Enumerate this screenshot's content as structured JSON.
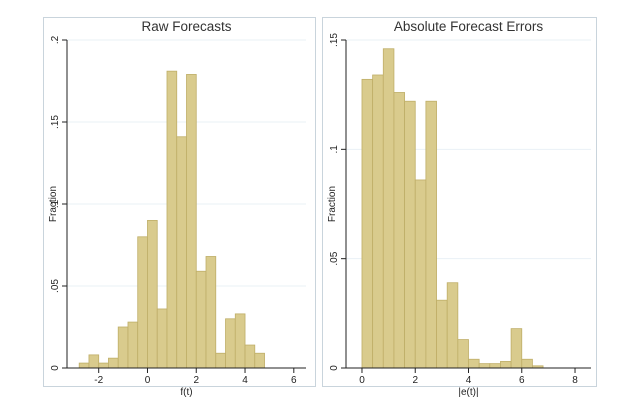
{
  "chart_data": [
    {
      "type": "bar",
      "title": "Raw Forecasts",
      "xlabel": "f(t)",
      "ylabel": "Fraction",
      "xlim": [
        -3.3,
        6.5
      ],
      "ylim": [
        0,
        0.2
      ],
      "xticks": [
        -2,
        0,
        2,
        4,
        6
      ],
      "xtick_labels": [
        "-2",
        "0",
        "2",
        "4",
        "6"
      ],
      "yticks": [
        0,
        0.05,
        0.1,
        0.15,
        0.2
      ],
      "ytick_labels": [
        "0",
        ".05",
        ".1",
        ".15",
        ".2"
      ],
      "bin_width": 0.4,
      "bin_starts": [
        -2.8,
        -2.4,
        -2.0,
        -1.6,
        -1.2,
        -0.8,
        -0.4,
        0.0,
        0.4,
        0.8,
        1.2,
        1.6,
        2.0,
        2.4,
        2.8,
        3.2,
        3.6,
        4.0,
        4.4,
        4.8
      ],
      "values": [
        0.003,
        0.008,
        0.003,
        0.006,
        0.025,
        0.028,
        0.08,
        0.09,
        0.036,
        0.181,
        0.141,
        0.179,
        0.059,
        0.068,
        0.009,
        0.03,
        0.033,
        0.014,
        0.009,
        0.0
      ],
      "grid": true
    },
    {
      "type": "bar",
      "title": "Absolute Forecast Errors",
      "xlabel": "|e(t)|",
      "ylabel": "Fraction",
      "xlim": [
        -0.6,
        8.6
      ],
      "ylim": [
        0,
        0.15
      ],
      "xticks": [
        0,
        2,
        4,
        6,
        8
      ],
      "xtick_labels": [
        "0",
        "2",
        "4",
        "6",
        "8"
      ],
      "yticks": [
        0,
        0.05,
        0.1,
        0.15
      ],
      "ytick_labels": [
        "0",
        ".05",
        ".1",
        ".15"
      ],
      "bin_width": 0.4,
      "bin_starts": [
        0.0,
        0.4,
        0.8,
        1.2,
        1.6,
        2.0,
        2.4,
        2.8,
        3.2,
        3.6,
        4.0,
        4.4,
        4.8,
        5.2,
        5.6,
        6.0,
        6.4
      ],
      "values": [
        0.132,
        0.134,
        0.146,
        0.126,
        0.122,
        0.086,
        0.122,
        0.031,
        0.039,
        0.013,
        0.004,
        0.002,
        0.002,
        0.003,
        0.018,
        0.004,
        0.001
      ],
      "grid": true
    }
  ],
  "colors": {
    "bar_fill": "#d9cb8d",
    "bar_edge": "#bfae68",
    "grid": "#eaf1f6",
    "panel_bg": "#ffffff"
  }
}
